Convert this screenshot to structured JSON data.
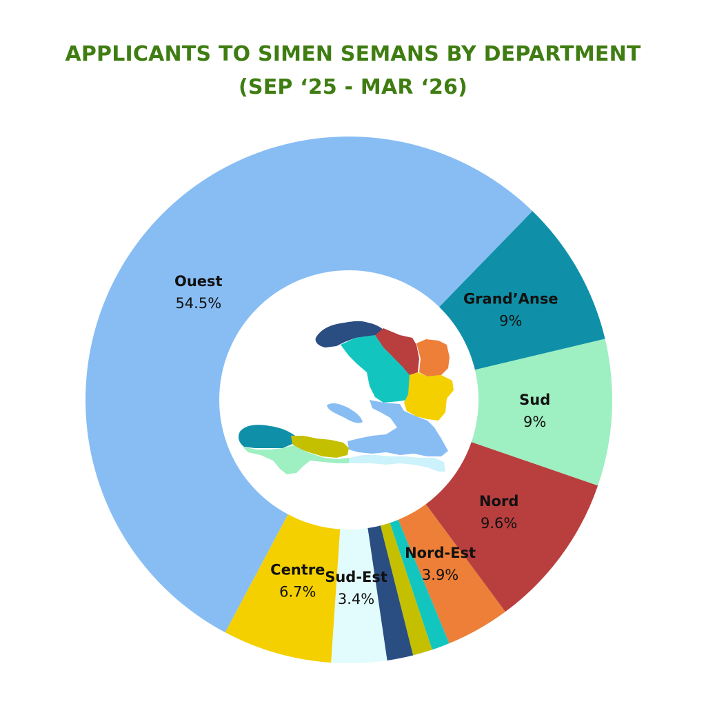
{
  "title_line1": "APPLICANTS TO SIMEN SEMANS BY DEPARTMENT",
  "title_line2": "(SEP ‘25 - MAR ‘26)",
  "chart_data": {
    "type": "pie",
    "donut": true,
    "title": "APPLICANTS TO SIMEN SEMANS BY DEPARTMENT (SEP ‘25 - MAR ‘26)",
    "slices": [
      {
        "name": "Ouest",
        "value": 54.5,
        "label": "54.5%",
        "color": "#88bdf4",
        "show_label": true
      },
      {
        "name": "Grand’Anse",
        "value": 9.0,
        "label": "9%",
        "color": "#0f90a8",
        "show_label": true
      },
      {
        "name": "Sud",
        "value": 9.0,
        "label": "9%",
        "color": "#9eefc1",
        "show_label": true
      },
      {
        "name": "Nord",
        "value": 9.6,
        "label": "9.6%",
        "color": "#b93e3e",
        "show_label": true
      },
      {
        "name": "Nord-Est",
        "value": 3.9,
        "label": "3.9%",
        "color": "#ed7f38",
        "show_label": true
      },
      {
        "name": "",
        "value": 1.1,
        "label": "",
        "color": "#12c6bf",
        "show_label": false
      },
      {
        "name": "",
        "value": 1.2,
        "label": "",
        "color": "#c4c000",
        "show_label": false
      },
      {
        "name": "",
        "value": 1.6,
        "label": "",
        "color": "#2a4d82",
        "show_label": false
      },
      {
        "name": "Sud-Est",
        "value": 3.4,
        "label": "3.4%",
        "color": "#e2fbfd",
        "show_label": true
      },
      {
        "name": "Centre",
        "value": 6.7,
        "label": "6.7%",
        "color": "#f4d000",
        "show_label": true
      }
    ]
  },
  "map_colors": {
    "nord_ouest": "#2a4d82",
    "nord": "#b93e3e",
    "nord_est": "#ed7f38",
    "artibonite": "#12c6bf",
    "centre": "#f4d000",
    "ouest": "#88bdf4",
    "grand_anse": "#0f90a8",
    "nippes": "#c4c000",
    "sud": "#9eefc1",
    "sud_est": "#ccf2fb"
  }
}
